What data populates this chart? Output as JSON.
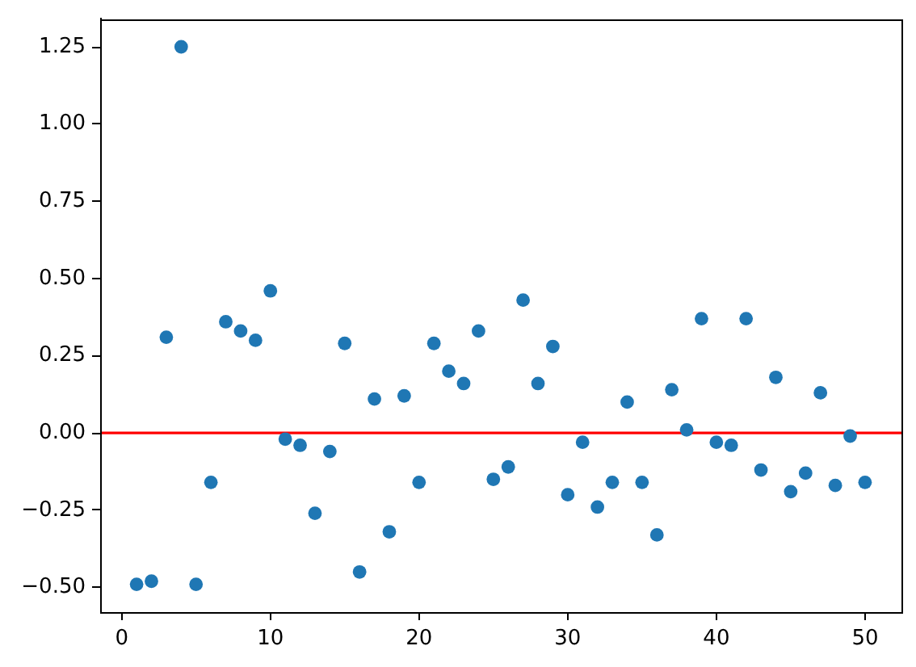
{
  "chart_data": {
    "type": "scatter",
    "x": [
      1,
      2,
      3,
      4,
      5,
      6,
      7,
      8,
      9,
      10,
      11,
      12,
      13,
      14,
      15,
      16,
      17,
      18,
      19,
      20,
      21,
      22,
      23,
      24,
      25,
      26,
      27,
      28,
      29,
      30,
      31,
      32,
      33,
      34,
      35,
      36,
      37,
      38,
      39,
      40,
      41,
      42,
      43,
      44,
      45,
      46,
      47,
      48,
      49,
      50
    ],
    "series": [
      {
        "color": "#1f77b4",
        "values": [
          -0.49,
          -0.48,
          0.31,
          1.25,
          -0.49,
          -0.16,
          0.36,
          0.33,
          0.3,
          0.46,
          -0.02,
          -0.04,
          -0.26,
          -0.06,
          0.29,
          -0.45,
          0.11,
          -0.32,
          0.12,
          -0.16,
          0.29,
          0.2,
          0.16,
          0.33,
          -0.15,
          -0.11,
          0.43,
          0.16,
          0.28,
          -0.2,
          -0.03,
          -0.24,
          -0.16,
          0.1,
          -0.16,
          -0.33,
          0.14,
          0.01,
          0.37,
          -0.03,
          -0.04,
          0.37,
          -0.12,
          0.18,
          -0.19,
          -0.13,
          0.13,
          -0.17,
          -0.01,
          -0.16
        ]
      }
    ],
    "xlim": [
      -1.45,
      52.45
    ],
    "xticks": [
      0,
      10,
      20,
      30,
      40,
      50
    ],
    "ylim": [
      -0.58,
      1.34
    ],
    "yticks": [
      {
        "value": -0.5,
        "label": "−0.50"
      },
      {
        "value": -0.25,
        "label": "−0.25"
      },
      {
        "value": 0,
        "label": "0.00"
      },
      {
        "value": 0.25,
        "label": "0.25"
      },
      {
        "value": 0.5,
        "label": "0.50"
      },
      {
        "value": 0.75,
        "label": "0.75"
      },
      {
        "value": 1,
        "label": "1.00"
      },
      {
        "value": 1.25,
        "label": "1.25"
      }
    ],
    "ref_lines": [
      {
        "axis": "y",
        "value": 0,
        "color": "#ff0000"
      }
    ],
    "marker": "circle"
  }
}
